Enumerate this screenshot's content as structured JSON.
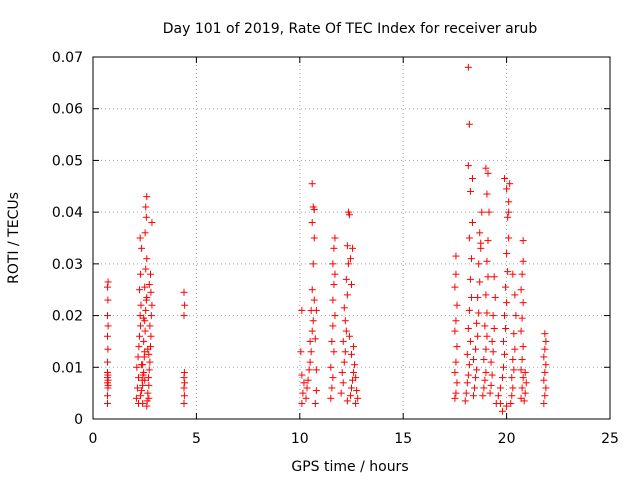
{
  "chart_data": {
    "type": "scatter",
    "title": "Day 101 of 2019, Rate Of TEC Index for receiver arub",
    "xlabel": "GPS time / hours",
    "ylabel": "ROTI / TECUs",
    "xlim": [
      0,
      25
    ],
    "ylim": [
      0,
      0.07
    ],
    "x_ticks": [
      0,
      5,
      10,
      15,
      20,
      25
    ],
    "y_ticks": [
      0,
      0.01,
      0.02,
      0.03,
      0.04,
      0.05,
      0.06,
      0.07
    ],
    "x_tick_labels": [
      "0",
      "5",
      "10",
      "15",
      "20",
      "25"
    ],
    "y_tick_labels": [
      "0",
      "0.01",
      "0.02",
      "0.03",
      "0.04",
      "0.05",
      "0.06",
      "0.07"
    ],
    "grid": true,
    "marker": "+",
    "color": "#ff0000",
    "series": [
      {
        "points": [
          [
            0.7,
            0.003
          ],
          [
            0.7,
            0.0045
          ],
          [
            0.72,
            0.006
          ],
          [
            0.7,
            0.007
          ],
          [
            0.73,
            0.0075
          ],
          [
            0.7,
            0.008
          ],
          [
            0.72,
            0.0085
          ],
          [
            0.7,
            0.009
          ],
          [
            0.73,
            0.0065
          ],
          [
            0.7,
            0.011
          ],
          [
            0.72,
            0.0135
          ],
          [
            0.7,
            0.016
          ],
          [
            0.73,
            0.018
          ],
          [
            0.7,
            0.02
          ],
          [
            0.72,
            0.023
          ],
          [
            0.7,
            0.0255
          ],
          [
            0.73,
            0.0265
          ],
          [
            2.1,
            0.004
          ],
          [
            2.15,
            0.006
          ],
          [
            2.2,
            0.008
          ],
          [
            2.12,
            0.01
          ],
          [
            2.18,
            0.012
          ],
          [
            2.22,
            0.014
          ],
          [
            2.25,
            0.016
          ],
          [
            2.3,
            0.018
          ],
          [
            2.28,
            0.02
          ],
          [
            2.32,
            0.022
          ],
          [
            2.25,
            0.025
          ],
          [
            2.3,
            0.028
          ],
          [
            2.35,
            0.033
          ],
          [
            2.28,
            0.035
          ],
          [
            2.2,
            0.003
          ],
          [
            2.3,
            0.0045
          ],
          [
            2.35,
            0.0055
          ],
          [
            2.4,
            0.0065
          ],
          [
            2.38,
            0.0075
          ],
          [
            2.42,
            0.0085
          ],
          [
            2.45,
            0.009
          ],
          [
            2.4,
            0.0105
          ],
          [
            2.48,
            0.012
          ],
          [
            2.5,
            0.013
          ],
          [
            2.45,
            0.015
          ],
          [
            2.52,
            0.017
          ],
          [
            2.5,
            0.019
          ],
          [
            2.55,
            0.021
          ],
          [
            2.58,
            0.023
          ],
          [
            2.5,
            0.0255
          ],
          [
            2.55,
            0.029
          ],
          [
            2.6,
            0.031
          ],
          [
            2.52,
            0.036
          ],
          [
            2.58,
            0.039
          ],
          [
            2.55,
            0.041
          ],
          [
            2.6,
            0.043
          ],
          [
            2.62,
            0.0035
          ],
          [
            2.65,
            0.005
          ],
          [
            2.7,
            0.0065
          ],
          [
            2.68,
            0.008
          ],
          [
            2.72,
            0.0095
          ],
          [
            2.75,
            0.011
          ],
          [
            2.7,
            0.0125
          ],
          [
            2.78,
            0.014
          ],
          [
            2.8,
            0.016
          ],
          [
            2.75,
            0.018
          ],
          [
            2.82,
            0.02
          ],
          [
            2.85,
            0.022
          ],
          [
            2.8,
            0.0245
          ],
          [
            2.78,
            0.028
          ],
          [
            2.85,
            0.038
          ],
          [
            2.4,
            0.003
          ],
          [
            2.6,
            0.0025
          ],
          [
            2.7,
            0.004
          ],
          [
            2.5,
            0.0075
          ],
          [
            2.35,
            0.0105
          ],
          [
            2.65,
            0.0135
          ],
          [
            2.45,
            0.0195
          ],
          [
            2.6,
            0.0235
          ],
          [
            2.72,
            0.026
          ],
          [
            4.4,
            0.003
          ],
          [
            4.42,
            0.0045
          ],
          [
            4.4,
            0.006
          ],
          [
            4.43,
            0.007
          ],
          [
            4.4,
            0.008
          ],
          [
            4.42,
            0.009
          ],
          [
            4.4,
            0.02
          ],
          [
            4.43,
            0.022
          ],
          [
            4.4,
            0.0245
          ],
          [
            10.1,
            0.003
          ],
          [
            10.15,
            0.005
          ],
          [
            10.2,
            0.007
          ],
          [
            10.1,
            0.0085
          ],
          [
            10.05,
            0.013
          ],
          [
            10.1,
            0.021
          ],
          [
            10.3,
            0.004
          ],
          [
            10.35,
            0.006
          ],
          [
            10.4,
            0.0075
          ],
          [
            10.45,
            0.0095
          ],
          [
            10.5,
            0.011
          ],
          [
            10.55,
            0.013
          ],
          [
            10.5,
            0.015
          ],
          [
            10.6,
            0.017
          ],
          [
            10.65,
            0.019
          ],
          [
            10.55,
            0.021
          ],
          [
            10.7,
            0.023
          ],
          [
            10.6,
            0.025
          ],
          [
            10.65,
            0.03
          ],
          [
            10.7,
            0.035
          ],
          [
            10.6,
            0.038
          ],
          [
            10.65,
            0.041
          ],
          [
            10.6,
            0.0455
          ],
          [
            10.7,
            0.0405
          ],
          [
            10.75,
            0.003
          ],
          [
            10.8,
            0.0055
          ],
          [
            10.8,
            0.0095
          ],
          [
            10.75,
            0.0155
          ],
          [
            10.8,
            0.021
          ],
          [
            11.5,
            0.004
          ],
          [
            11.55,
            0.006
          ],
          [
            11.6,
            0.008
          ],
          [
            11.5,
            0.01
          ],
          [
            11.65,
            0.013
          ],
          [
            11.55,
            0.015
          ],
          [
            11.6,
            0.018
          ],
          [
            11.7,
            0.02
          ],
          [
            11.6,
            0.023
          ],
          [
            11.65,
            0.026
          ],
          [
            11.7,
            0.028
          ],
          [
            11.6,
            0.03
          ],
          [
            11.65,
            0.033
          ],
          [
            11.7,
            0.035
          ],
          [
            12.0,
            0.005
          ],
          [
            12.1,
            0.007
          ],
          [
            12.05,
            0.009
          ],
          [
            12.15,
            0.011
          ],
          [
            12.2,
            0.013
          ],
          [
            12.1,
            0.015
          ],
          [
            12.25,
            0.017
          ],
          [
            12.2,
            0.019
          ],
          [
            12.15,
            0.0215
          ],
          [
            12.3,
            0.024
          ],
          [
            12.25,
            0.027
          ],
          [
            12.35,
            0.03
          ],
          [
            12.3,
            0.0335
          ],
          [
            12.35,
            0.04
          ],
          [
            12.4,
            0.0395
          ],
          [
            12.45,
            0.031
          ],
          [
            12.5,
            0.026
          ],
          [
            12.55,
            0.033
          ],
          [
            12.3,
            0.0035
          ],
          [
            12.45,
            0.0045
          ],
          [
            12.5,
            0.006
          ],
          [
            12.55,
            0.0075
          ],
          [
            12.6,
            0.009
          ],
          [
            12.65,
            0.0105
          ],
          [
            12.7,
            0.008
          ],
          [
            12.75,
            0.0055
          ],
          [
            12.8,
            0.004
          ],
          [
            12.7,
            0.003
          ],
          [
            12.5,
            0.0125
          ],
          [
            12.6,
            0.014
          ],
          [
            12.4,
            0.016
          ],
          [
            17.5,
            0.004
          ],
          [
            17.55,
            0.005
          ],
          [
            17.6,
            0.007
          ],
          [
            17.5,
            0.009
          ],
          [
            17.55,
            0.011
          ],
          [
            17.6,
            0.014
          ],
          [
            17.5,
            0.017
          ],
          [
            17.55,
            0.019
          ],
          [
            17.6,
            0.022
          ],
          [
            17.5,
            0.0255
          ],
          [
            17.55,
            0.028
          ],
          [
            17.55,
            0.0315
          ],
          [
            18.0,
            0.0035
          ],
          [
            18.05,
            0.005
          ],
          [
            18.1,
            0.007
          ],
          [
            18.15,
            0.0085
          ],
          [
            18.2,
            0.0105
          ],
          [
            18.1,
            0.0125
          ],
          [
            18.25,
            0.015
          ],
          [
            18.15,
            0.0175
          ],
          [
            18.2,
            0.021
          ],
          [
            18.3,
            0.0235
          ],
          [
            18.25,
            0.027
          ],
          [
            18.3,
            0.031
          ],
          [
            18.2,
            0.035
          ],
          [
            18.35,
            0.038
          ],
          [
            18.25,
            0.044
          ],
          [
            18.15,
            0.049
          ],
          [
            18.35,
            0.0465
          ],
          [
            18.2,
            0.057
          ],
          [
            18.15,
            0.068
          ],
          [
            18.4,
            0.0045
          ],
          [
            18.45,
            0.006
          ],
          [
            18.5,
            0.008
          ],
          [
            18.55,
            0.0095
          ],
          [
            18.4,
            0.0115
          ],
          [
            18.5,
            0.0135
          ],
          [
            18.6,
            0.016
          ],
          [
            18.55,
            0.0185
          ],
          [
            18.65,
            0.0205
          ],
          [
            18.6,
            0.0235
          ],
          [
            18.7,
            0.0265
          ],
          [
            18.65,
            0.03
          ],
          [
            18.75,
            0.033
          ],
          [
            18.7,
            0.036
          ],
          [
            18.8,
            0.04
          ],
          [
            18.75,
            0.034
          ],
          [
            18.85,
            0.0045
          ],
          [
            18.9,
            0.006
          ],
          [
            18.95,
            0.0075
          ],
          [
            19.0,
            0.009
          ],
          [
            18.9,
            0.0115
          ],
          [
            19.0,
            0.0135
          ],
          [
            19.05,
            0.016
          ],
          [
            18.95,
            0.018
          ],
          [
            19.05,
            0.0205
          ],
          [
            19.0,
            0.024
          ],
          [
            19.1,
            0.0275
          ],
          [
            19.05,
            0.0305
          ],
          [
            19.1,
            0.0345
          ],
          [
            19.15,
            0.04
          ],
          [
            19.05,
            0.0435
          ],
          [
            19.1,
            0.0475
          ],
          [
            19.0,
            0.0485
          ],
          [
            19.2,
            0.005
          ],
          [
            19.25,
            0.0065
          ],
          [
            19.3,
            0.0085
          ],
          [
            19.25,
            0.011
          ],
          [
            19.35,
            0.013
          ],
          [
            19.3,
            0.015
          ],
          [
            19.4,
            0.0175
          ],
          [
            19.35,
            0.02
          ],
          [
            19.45,
            0.0235
          ],
          [
            19.4,
            0.0275
          ],
          [
            19.5,
            0.003
          ],
          [
            19.6,
            0.0045
          ],
          [
            19.7,
            0.006
          ],
          [
            19.8,
            0.008
          ],
          [
            19.85,
            0.01
          ],
          [
            19.9,
            0.0125
          ],
          [
            19.85,
            0.015
          ],
          [
            19.95,
            0.0175
          ],
          [
            19.9,
            0.02
          ],
          [
            20.0,
            0.0225
          ],
          [
            19.95,
            0.0255
          ],
          [
            20.05,
            0.0285
          ],
          [
            20.0,
            0.032
          ],
          [
            20.1,
            0.035
          ],
          [
            20.05,
            0.039
          ],
          [
            20.1,
            0.042
          ],
          [
            20.0,
            0.0445
          ],
          [
            19.9,
            0.0465
          ],
          [
            20.15,
            0.0455
          ],
          [
            20.1,
            0.04
          ],
          [
            20.2,
            0.003
          ],
          [
            20.25,
            0.0045
          ],
          [
            20.3,
            0.006
          ],
          [
            20.25,
            0.008
          ],
          [
            20.35,
            0.0095
          ],
          [
            20.3,
            0.0115
          ],
          [
            20.4,
            0.0135
          ],
          [
            20.35,
            0.0165
          ],
          [
            20.45,
            0.02
          ],
          [
            20.4,
            0.024
          ],
          [
            20.3,
            0.028
          ],
          [
            19.8,
            0.0015
          ],
          [
            20.0,
            0.0025
          ],
          [
            19.7,
            0.003
          ],
          [
            20.7,
            0.004
          ],
          [
            20.75,
            0.006
          ],
          [
            20.8,
            0.008
          ],
          [
            20.7,
            0.0095
          ],
          [
            20.75,
            0.0115
          ],
          [
            20.8,
            0.014
          ],
          [
            20.7,
            0.017
          ],
          [
            20.75,
            0.0195
          ],
          [
            20.8,
            0.0225
          ],
          [
            20.7,
            0.025
          ],
          [
            20.75,
            0.028
          ],
          [
            20.8,
            0.0305
          ],
          [
            20.8,
            0.0345
          ],
          [
            20.85,
            0.0035
          ],
          [
            20.9,
            0.005
          ],
          [
            20.95,
            0.007
          ],
          [
            20.9,
            0.009
          ],
          [
            21.8,
            0.003
          ],
          [
            21.85,
            0.0045
          ],
          [
            21.9,
            0.006
          ],
          [
            21.8,
            0.0075
          ],
          [
            21.85,
            0.009
          ],
          [
            21.9,
            0.0105
          ],
          [
            21.8,
            0.012
          ],
          [
            21.85,
            0.0135
          ],
          [
            21.9,
            0.015
          ],
          [
            21.85,
            0.0165
          ]
        ]
      }
    ]
  }
}
